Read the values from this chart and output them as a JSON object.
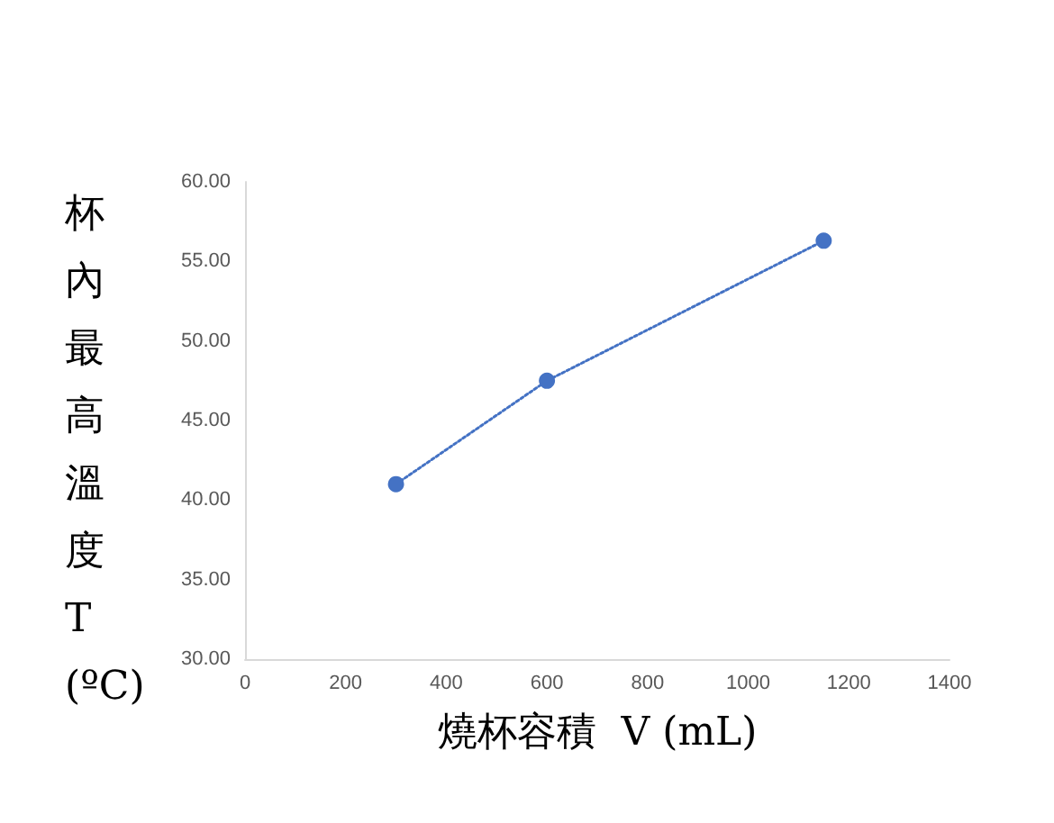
{
  "chart_data": {
    "type": "line",
    "xlabel": "燒杯容積  V (mL)",
    "ylabel": "杯內最高溫度T(ºC)",
    "x": [
      300,
      600,
      1150
    ],
    "series": [
      {
        "color": "#4472c4",
        "values": [
          41.0,
          47.5,
          56.3
        ]
      }
    ],
    "xlim": [
      0,
      1400
    ],
    "xticks": [
      0,
      200,
      400,
      600,
      800,
      1000,
      1200,
      1400
    ],
    "ylim": [
      30,
      60
    ],
    "yticks": [
      {
        "value": 30,
        "label": "30.00"
      },
      {
        "value": 35,
        "label": "35.00"
      },
      {
        "value": 40,
        "label": "40.00"
      },
      {
        "value": 45,
        "label": "45.00"
      },
      {
        "value": 50,
        "label": "50.00"
      },
      {
        "value": 55,
        "label": "55.00"
      },
      {
        "value": 60,
        "label": "60.00"
      }
    ],
    "grid": false,
    "marker": "circle",
    "line_style": "dotted"
  }
}
